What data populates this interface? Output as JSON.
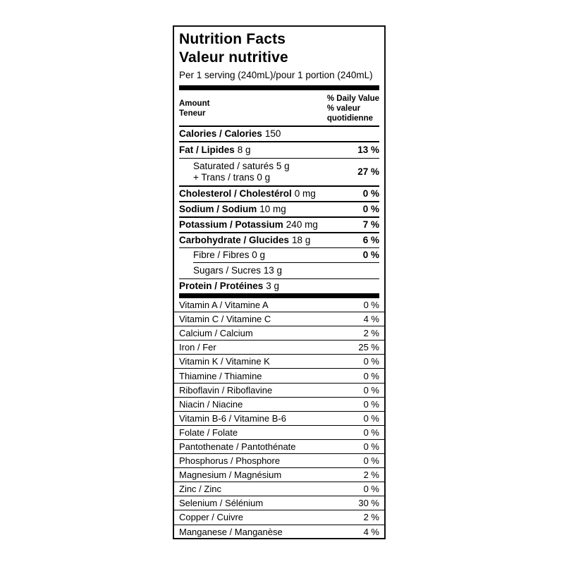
{
  "label": {
    "title_en": "Nutrition Facts",
    "title_fr": "Valeur nutritive",
    "serving": "Per 1 serving (240mL)/pour 1 portion (240mL)",
    "header": {
      "amount_en": "Amount",
      "amount_fr": "Teneur",
      "dv_en": "% Daily Value",
      "dv_fr1": "% valeur",
      "dv_fr2": "quotidienne"
    },
    "calories": {
      "name": "Calories / Calories",
      "amount": "150"
    },
    "nutrients": {
      "fat": {
        "name": "Fat / Lipides",
        "amount": "8 g",
        "dv": "13 %"
      },
      "saturated": {
        "line1": "Saturated / saturés 5 g",
        "line2": "+ Trans / trans 0 g",
        "dv": "27 %"
      },
      "cholesterol": {
        "name": "Cholesterol / Cholestérol",
        "amount": "0 mg",
        "dv": "0 %"
      },
      "sodium": {
        "name": "Sodium / Sodium",
        "amount": "10 mg",
        "dv": "0 %"
      },
      "potassium": {
        "name": "Potassium / Potassium",
        "amount": "240 mg",
        "dv": "7 %"
      },
      "carbohydrate": {
        "name": "Carbohydrate / Glucides",
        "amount": "18 g",
        "dv": "6 %"
      },
      "fibre": {
        "name": "Fibre / Fibres 0 g",
        "dv": "0 %"
      },
      "sugars": {
        "name": "Sugars / Sucres 13 g"
      },
      "protein": {
        "name": "Protein / Protéines",
        "amount": "3 g"
      }
    },
    "micronutrients": [
      {
        "name": "Vitamin A / Vitamine A",
        "value": "0 %"
      },
      {
        "name": "Vitamin C / Vitamine C",
        "value": "4 %"
      },
      {
        "name": "Calcium / Calcium",
        "value": "2 %"
      },
      {
        "name": "Iron / Fer",
        "value": "25 %"
      },
      {
        "name": "Vitamin K / Vitamine K",
        "value": "0 %"
      },
      {
        "name": "Thiamine / Thiamine",
        "value": "0 %"
      },
      {
        "name": "Riboflavin / Riboflavine",
        "value": "0 %"
      },
      {
        "name": "Niacin / Niacine",
        "value": "0 %"
      },
      {
        "name": "Vitamin B-6 / Vitamine B-6",
        "value": "0 %"
      },
      {
        "name": "Folate / Folate",
        "value": "0 %"
      },
      {
        "name": "Pantothenate / Pantothénate",
        "value": "0 %"
      },
      {
        "name": "Phosphorus / Phosphore",
        "value": "0 %"
      },
      {
        "name": "Magnesium / Magnésium",
        "value": "2 %"
      },
      {
        "name": "Zinc / Zinc",
        "value": "0 %"
      },
      {
        "name": "Selenium / Sélénium",
        "value": "30 %"
      },
      {
        "name": "Copper / Cuivre",
        "value": "2 %"
      },
      {
        "name": "Manganese / Manganèse",
        "value": "4 %"
      }
    ],
    "colors": {
      "ink": "#000000",
      "background": "#ffffff"
    }
  }
}
